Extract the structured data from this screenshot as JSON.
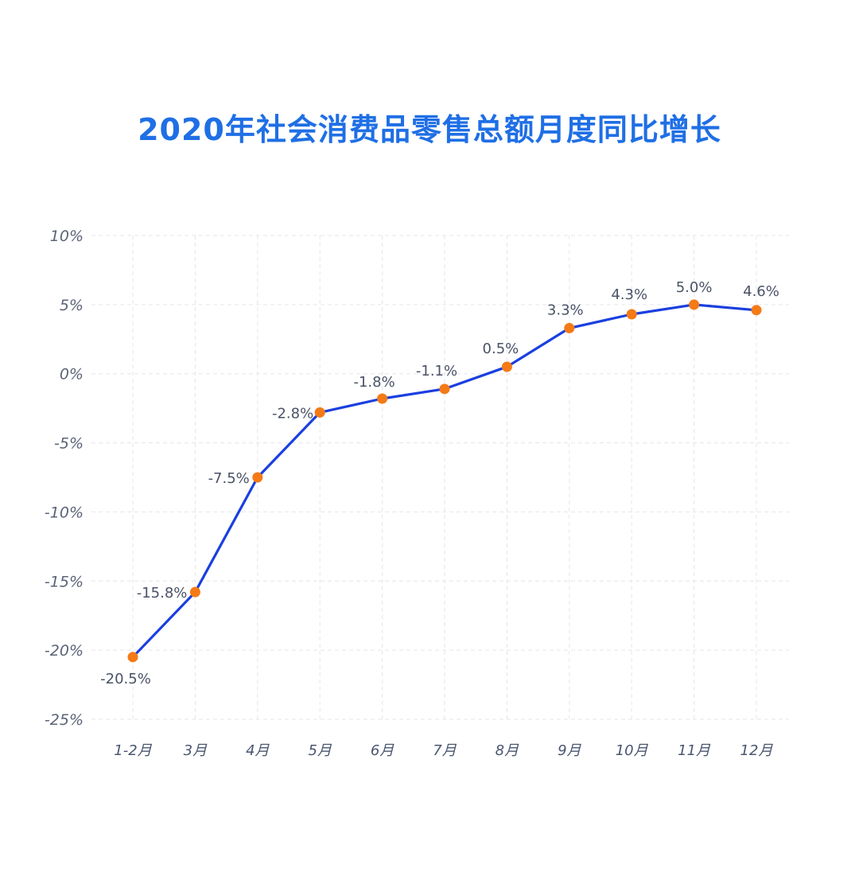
{
  "chart_data": {
    "type": "line",
    "title": "2020年社会消费品零售总额月度同比增长",
    "categories": [
      "1-2月",
      "3月",
      "4月",
      "5月",
      "6月",
      "7月",
      "8月",
      "9月",
      "10月",
      "11月",
      "12月"
    ],
    "series": [
      {
        "values": [
          -20.5,
          -15.8,
          -7.5,
          -2.8,
          -1.8,
          -1.1,
          0.5,
          3.3,
          4.3,
          5.0,
          4.6
        ]
      }
    ],
    "data_labels": [
      "-20.5%",
      "-15.8%",
      "-7.5%",
      "-2.8%",
      "-1.8%",
      "-1.1%",
      "0.5%",
      "3.3%",
      "4.3%",
      "5.0%",
      "4.6%"
    ],
    "y_ticks": [
      10,
      5,
      0,
      -5,
      -10,
      -15,
      -20,
      -25
    ],
    "y_tick_labels": [
      "10%",
      "5%",
      "0%",
      "-5%",
      "-10%",
      "-15%",
      "-20%",
      "-25%"
    ],
    "ylim": [
      -25,
      10
    ],
    "xlabel": "",
    "ylabel": "",
    "grid": true,
    "colors": {
      "title": "#1f6fe5",
      "line": "#1a3fe0",
      "marker": "#f47a16",
      "grid": "#e3e6ec"
    }
  }
}
